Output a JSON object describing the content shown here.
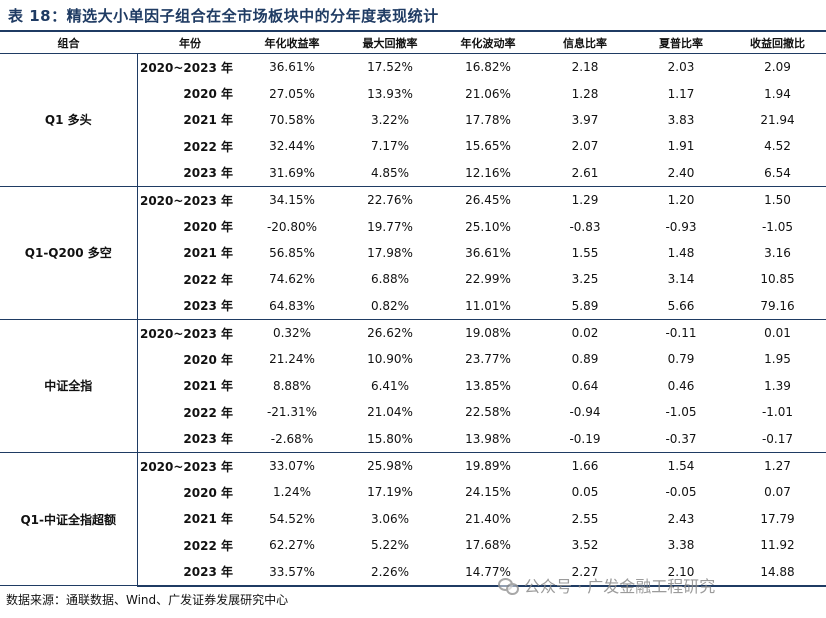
{
  "title": "表 18：精选大小单因子组合在全市场板块中的分年度表现统计",
  "headers": [
    "组合",
    "年份",
    "年化收益率",
    "最大回撤率",
    "年化波动率",
    "信息比率",
    "夏普比率",
    "收益回撤比"
  ],
  "groups": [
    {
      "name": "Q1 多头",
      "rows": [
        [
          "2020~2023 年",
          "36.61%",
          "17.52%",
          "16.82%",
          "2.18",
          "2.03",
          "2.09"
        ],
        [
          "2020 年",
          "27.05%",
          "13.93%",
          "21.06%",
          "1.28",
          "1.17",
          "1.94"
        ],
        [
          "2021 年",
          "70.58%",
          "3.22%",
          "17.78%",
          "3.97",
          "3.83",
          "21.94"
        ],
        [
          "2022 年",
          "32.44%",
          "7.17%",
          "15.65%",
          "2.07",
          "1.91",
          "4.52"
        ],
        [
          "2023 年",
          "31.69%",
          "4.85%",
          "12.16%",
          "2.61",
          "2.40",
          "6.54"
        ]
      ]
    },
    {
      "name": "Q1-Q200 多空",
      "rows": [
        [
          "2020~2023 年",
          "34.15%",
          "22.76%",
          "26.45%",
          "1.29",
          "1.20",
          "1.50"
        ],
        [
          "2020 年",
          "-20.80%",
          "19.77%",
          "25.10%",
          "-0.83",
          "-0.93",
          "-1.05"
        ],
        [
          "2021 年",
          "56.85%",
          "17.98%",
          "36.61%",
          "1.55",
          "1.48",
          "3.16"
        ],
        [
          "2022 年",
          "74.62%",
          "6.88%",
          "22.99%",
          "3.25",
          "3.14",
          "10.85"
        ],
        [
          "2023 年",
          "64.83%",
          "0.82%",
          "11.01%",
          "5.89",
          "5.66",
          "79.16"
        ]
      ]
    },
    {
      "name": "中证全指",
      "rows": [
        [
          "2020~2023 年",
          "0.32%",
          "26.62%",
          "19.08%",
          "0.02",
          "-0.11",
          "0.01"
        ],
        [
          "2020 年",
          "21.24%",
          "10.90%",
          "23.77%",
          "0.89",
          "0.79",
          "1.95"
        ],
        [
          "2021 年",
          "8.88%",
          "6.41%",
          "13.85%",
          "0.64",
          "0.46",
          "1.39"
        ],
        [
          "2022 年",
          "-21.31%",
          "21.04%",
          "22.58%",
          "-0.94",
          "-1.05",
          "-1.01"
        ],
        [
          "2023 年",
          "-2.68%",
          "15.80%",
          "13.98%",
          "-0.19",
          "-0.37",
          "-0.17"
        ]
      ]
    },
    {
      "name": "Q1-中证全指超额",
      "rows": [
        [
          "2020~2023 年",
          "33.07%",
          "25.98%",
          "19.89%",
          "1.66",
          "1.54",
          "1.27"
        ],
        [
          "2020 年",
          "1.24%",
          "17.19%",
          "24.15%",
          "0.05",
          "-0.05",
          "0.07"
        ],
        [
          "2021 年",
          "54.52%",
          "3.06%",
          "21.40%",
          "2.55",
          "2.43",
          "17.79"
        ],
        [
          "2022 年",
          "62.27%",
          "5.22%",
          "17.68%",
          "3.52",
          "3.38",
          "11.92"
        ],
        [
          "2023 年",
          "33.57%",
          "2.26%",
          "14.77%",
          "2.27",
          "2.10",
          "14.88"
        ]
      ]
    }
  ],
  "source": "数据来源：通联数据、Wind、广发证券发展研究中心",
  "watermark": {
    "text": "公众号 · 广发金融工程研究",
    "icon": "wechat-icon"
  }
}
